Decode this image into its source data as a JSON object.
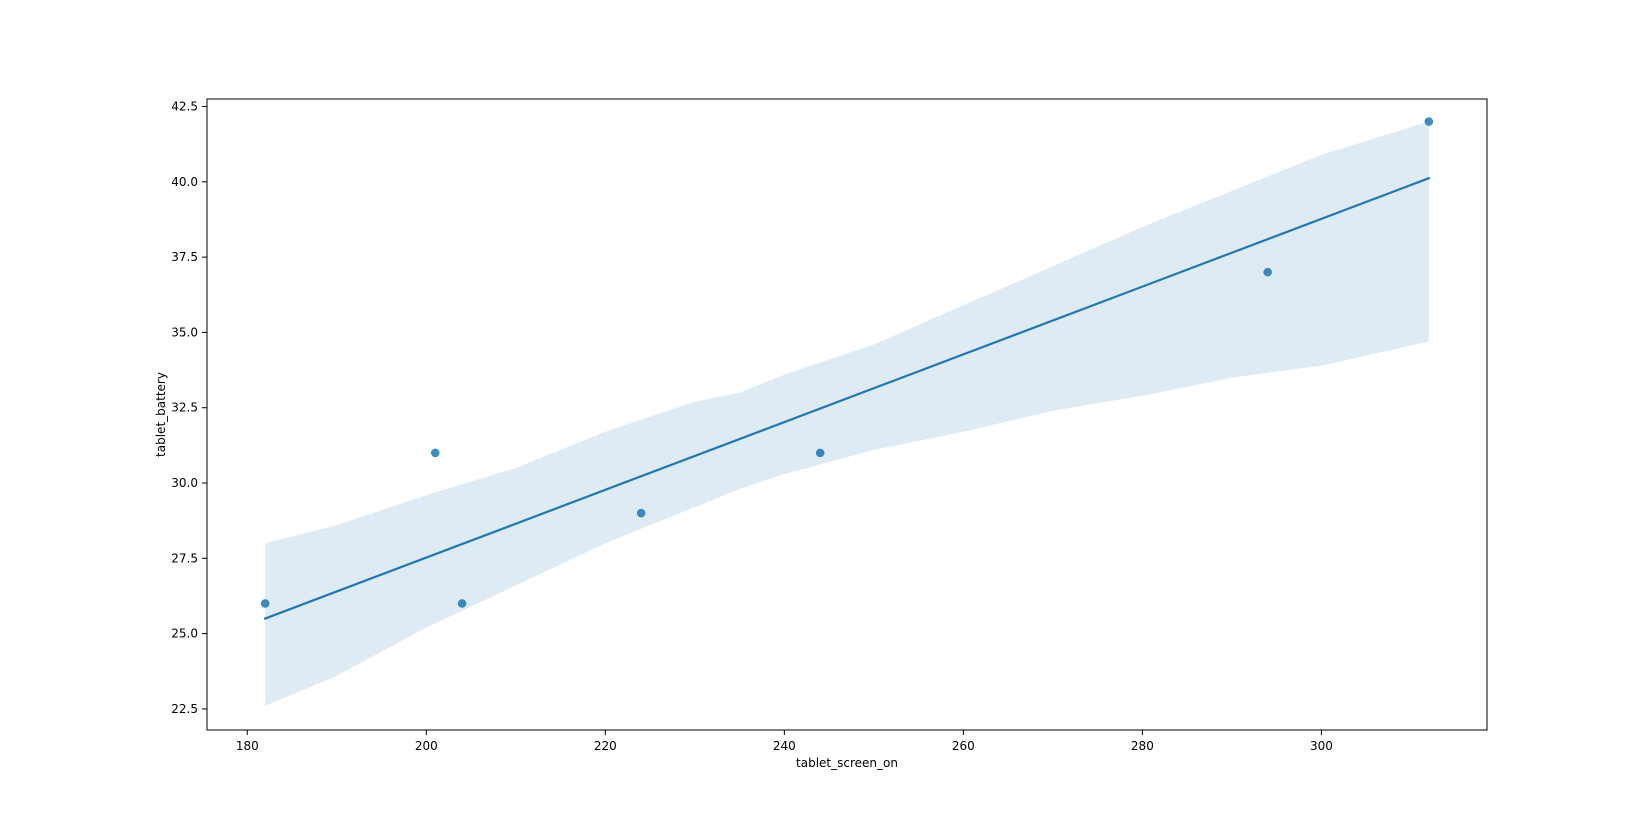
{
  "chart_data": {
    "type": "scatter",
    "title": "",
    "xlabel": "tablet_screen_on",
    "ylabel": "tablet_battery",
    "xlim": [
      175.5,
      318.5
    ],
    "ylim": [
      21.8,
      42.75
    ],
    "xticks": [
      180,
      200,
      220,
      240,
      260,
      280,
      300
    ],
    "yticks": [
      22.5,
      25.0,
      27.5,
      30.0,
      32.5,
      35.0,
      37.5,
      40.0,
      42.5
    ],
    "grid": false,
    "legend": "none",
    "points": [
      {
        "x": 182,
        "y": 26
      },
      {
        "x": 201,
        "y": 31
      },
      {
        "x": 204,
        "y": 26
      },
      {
        "x": 224,
        "y": 29
      },
      {
        "x": 244,
        "y": 31
      },
      {
        "x": 294,
        "y": 37
      },
      {
        "x": 312,
        "y": 42
      }
    ],
    "regression_line": {
      "x": [
        182,
        312
      ],
      "y": [
        25.5,
        40.12
      ]
    },
    "confidence_band": [
      {
        "x": 182,
        "lower": 22.6,
        "upper": 28.0
      },
      {
        "x": 190,
        "lower": 23.6,
        "upper": 28.6
      },
      {
        "x": 200,
        "lower": 25.2,
        "upper": 29.6
      },
      {
        "x": 210,
        "lower": 26.6,
        "upper": 30.5
      },
      {
        "x": 220,
        "lower": 28.0,
        "upper": 31.7
      },
      {
        "x": 230,
        "lower": 29.2,
        "upper": 32.7
      },
      {
        "x": 235,
        "lower": 29.8,
        "upper": 33.0
      },
      {
        "x": 240,
        "lower": 30.3,
        "upper": 33.6
      },
      {
        "x": 250,
        "lower": 31.1,
        "upper": 34.6
      },
      {
        "x": 260,
        "lower": 31.7,
        "upper": 35.9
      },
      {
        "x": 270,
        "lower": 32.4,
        "upper": 37.2
      },
      {
        "x": 280,
        "lower": 32.9,
        "upper": 38.5
      },
      {
        "x": 290,
        "lower": 33.5,
        "upper": 39.7
      },
      {
        "x": 300,
        "lower": 33.9,
        "upper": 40.9
      },
      {
        "x": 312,
        "lower": 34.7,
        "upper": 42.0
      }
    ],
    "colors": {
      "point": "#1f77b4",
      "line": "#1f77b4",
      "band": "#1f77b4"
    }
  }
}
